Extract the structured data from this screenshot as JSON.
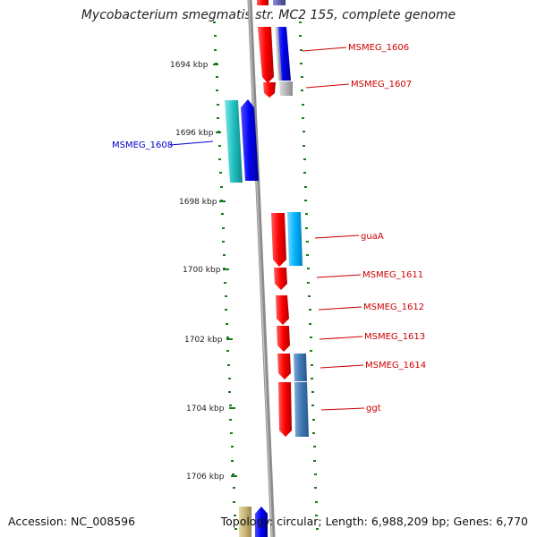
{
  "title": "Mycobacterium smegmatis str. MC2 155, complete genome",
  "accession": "Accession: NC_008596",
  "summary": "Topology: circular; Length: 6,988,209 bp; Genes: 6,770",
  "colors": {
    "backbone": "#8c8c8c",
    "tick": "#1a7a1a",
    "label_red": "#cc0000",
    "label_blue": "#0000cc",
    "cds_red": "#ff0000",
    "cds_blue": "#0000ee",
    "cds_cyan": "#20c0c0",
    "cds_skyblue": "#00b4ff",
    "cds_steel": "#3c78b4",
    "cds_gray": "#b4b4b4",
    "cds_olive": "#c8b478"
  },
  "ticks": [
    {
      "label": "1694 kbp"
    },
    {
      "label": "1696 kbp"
    },
    {
      "label": "1698 kbp"
    },
    {
      "label": "1700 kbp"
    },
    {
      "label": "1702 kbp"
    },
    {
      "label": "1704 kbp"
    },
    {
      "label": "1706 kbp"
    }
  ],
  "gene_labels": [
    {
      "text": "MSMEG_1606",
      "color": "#cc0000"
    },
    {
      "text": "MSMEG_1607",
      "color": "#cc0000"
    },
    {
      "text": "MSMEG_1608",
      "color": "#0000cc"
    },
    {
      "text": "guaA",
      "color": "#cc0000"
    },
    {
      "text": "MSMEG_1611",
      "color": "#cc0000"
    },
    {
      "text": "MSMEG_1612",
      "color": "#cc0000"
    },
    {
      "text": "MSMEG_1613",
      "color": "#cc0000"
    },
    {
      "text": "MSMEG_1614",
      "color": "#cc0000"
    },
    {
      "text": "ggt",
      "color": "#cc0000"
    }
  ]
}
